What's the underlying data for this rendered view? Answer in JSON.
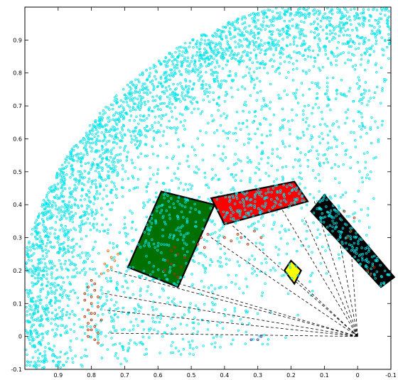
{
  "chart_data": {
    "type": "scatter",
    "title": "",
    "xlabel": "",
    "ylabel": "",
    "xlim": [
      -0.1,
      1.0
    ],
    "ylim": [
      -0.1,
      1.0
    ],
    "x_reversed": true,
    "grid": false,
    "x_ticks": [
      0.9,
      0.8,
      0.7,
      0.6,
      0.5,
      0.4,
      0.3,
      0.2,
      0.1,
      0,
      -0.1
    ],
    "x_tick_labels": [
      "0.9",
      "0.8",
      "0.7",
      "0.6",
      "0.5",
      "0.4",
      "0.3",
      "0.2",
      "0.1",
      "0",
      "-0.1"
    ],
    "y_ticks": [
      -0.1,
      0,
      0.1,
      0.2,
      0.3,
      0.4,
      0.5,
      0.6,
      0.7,
      0.8,
      0.9
    ],
    "y_tick_labels": [
      "-0.1",
      "0",
      "0.1",
      "0.2",
      "0.3",
      "0.4",
      "0.5",
      "0.6",
      "0.7",
      "0.8",
      "0.9"
    ],
    "origin": [
      0.0,
      0.0
    ],
    "colors": {
      "background_points": "#00e5ee",
      "near_points": "#b03000",
      "orange_points": "#e87010",
      "blue_points": "#3030a0",
      "dashed_lines": "#000000",
      "arrow": "#000000"
    },
    "obstacles": [
      {
        "name": "green",
        "fill": "#007000",
        "corners": [
          [
            0.59,
            0.44
          ],
          [
            0.43,
            0.4
          ],
          [
            0.54,
            0.15
          ],
          [
            0.69,
            0.21
          ]
        ]
      },
      {
        "name": "red",
        "fill": "#ff0000",
        "corners": [
          [
            0.44,
            0.42
          ],
          [
            0.19,
            0.47
          ],
          [
            0.15,
            0.41
          ],
          [
            0.4,
            0.34
          ]
        ]
      },
      {
        "name": "yellow",
        "fill": "#ffff00",
        "corners": [
          [
            0.2,
            0.23
          ],
          [
            0.17,
            0.2
          ],
          [
            0.19,
            0.16
          ],
          [
            0.22,
            0.2
          ]
        ]
      },
      {
        "name": "black",
        "fill": "#000000",
        "corners": [
          [
            0.1,
            0.43
          ],
          [
            0.14,
            0.38
          ],
          [
            -0.07,
            0.15
          ],
          [
            -0.11,
            0.18
          ]
        ]
      }
    ],
    "dashed_rays": [
      [
        0.75,
        0.01
      ],
      [
        0.76,
        0.08
      ],
      [
        0.76,
        0.13
      ],
      [
        0.74,
        0.2
      ],
      [
        0.57,
        0.17
      ],
      [
        0.44,
        0.3
      ],
      [
        0.38,
        0.34
      ],
      [
        0.23,
        0.39
      ],
      [
        0.16,
        0.36
      ],
      [
        0.19,
        0.18
      ],
      [
        0.13,
        0.41
      ],
      [
        0.06,
        0.32
      ],
      [
        0.02,
        0.27
      ]
    ],
    "series": [
      {
        "role": "background",
        "marker": "circle",
        "count": 2600,
        "region": "annulus",
        "r_min": 0.79,
        "r_max": 1.03
      },
      {
        "role": "background",
        "marker": "circle",
        "count": 1100,
        "region": "annulus",
        "r_min": 0.18,
        "r_max": 0.79
      },
      {
        "role": "near",
        "marker": "circle",
        "points": [
          [
            0.81,
            0.15
          ],
          [
            0.79,
            0.14
          ],
          [
            0.8,
            0.12
          ],
          [
            0.82,
            0.11
          ],
          [
            0.8,
            0.1
          ],
          [
            0.81,
            0.08
          ],
          [
            0.79,
            0.07
          ],
          [
            0.82,
            0.06
          ],
          [
            0.8,
            0.05
          ],
          [
            0.81,
            0.04
          ],
          [
            0.79,
            0.03
          ],
          [
            0.8,
            0.02
          ],
          [
            0.78,
            0.01
          ],
          [
            0.81,
            0.0
          ],
          [
            0.79,
            -0.01
          ],
          [
            0.82,
            0.13
          ],
          [
            0.78,
            0.09
          ],
          [
            0.8,
            0.17
          ],
          [
            0.78,
            0.12
          ],
          [
            0.77,
            0.05
          ],
          [
            0.79,
            0.16
          ],
          [
            0.81,
            0.02
          ],
          [
            0.78,
            -0.02
          ],
          [
            0.8,
            0.07
          ],
          [
            0.56,
            0.22
          ],
          [
            0.54,
            0.25
          ],
          [
            0.55,
            0.19
          ],
          [
            0.57,
            0.23
          ],
          [
            0.53,
            0.21
          ],
          [
            0.52,
            0.24
          ],
          [
            0.55,
            0.27
          ],
          [
            0.58,
            0.2
          ],
          [
            0.54,
            0.18
          ],
          [
            0.56,
            0.26
          ],
          [
            0.48,
            0.28
          ],
          [
            0.46,
            0.27
          ],
          [
            0.47,
            0.3
          ],
          [
            0.45,
            0.31
          ],
          [
            0.4,
            0.3
          ],
          [
            0.38,
            0.29
          ],
          [
            0.35,
            0.3
          ],
          [
            0.33,
            0.28
          ],
          [
            0.36,
            0.31
          ],
          [
            0.29,
            0.3
          ],
          [
            0.31,
            0.32
          ],
          [
            0.04,
            0.38
          ],
          [
            0.02,
            0.32
          ],
          [
            0.01,
            0.36
          ],
          [
            0.03,
            0.3
          ],
          [
            -0.03,
            0.2
          ],
          [
            -0.05,
            0.21
          ],
          [
            -0.04,
            0.19
          ]
        ]
      },
      {
        "role": "orange",
        "marker": "circle",
        "points": [
          [
            0.76,
            0.22
          ],
          [
            0.74,
            0.24
          ],
          [
            0.75,
            0.2
          ],
          [
            0.73,
            0.23
          ],
          [
            0.77,
            0.19
          ],
          [
            0.72,
            0.25
          ],
          [
            0.74,
            0.21
          ],
          [
            0.75,
            0.26
          ]
        ]
      },
      {
        "role": "blue",
        "marker": "circle",
        "points": [
          [
            0.32,
            -0.01
          ],
          [
            0.3,
            -0.01
          ],
          [
            0.29,
            0.0
          ]
        ]
      }
    ]
  }
}
